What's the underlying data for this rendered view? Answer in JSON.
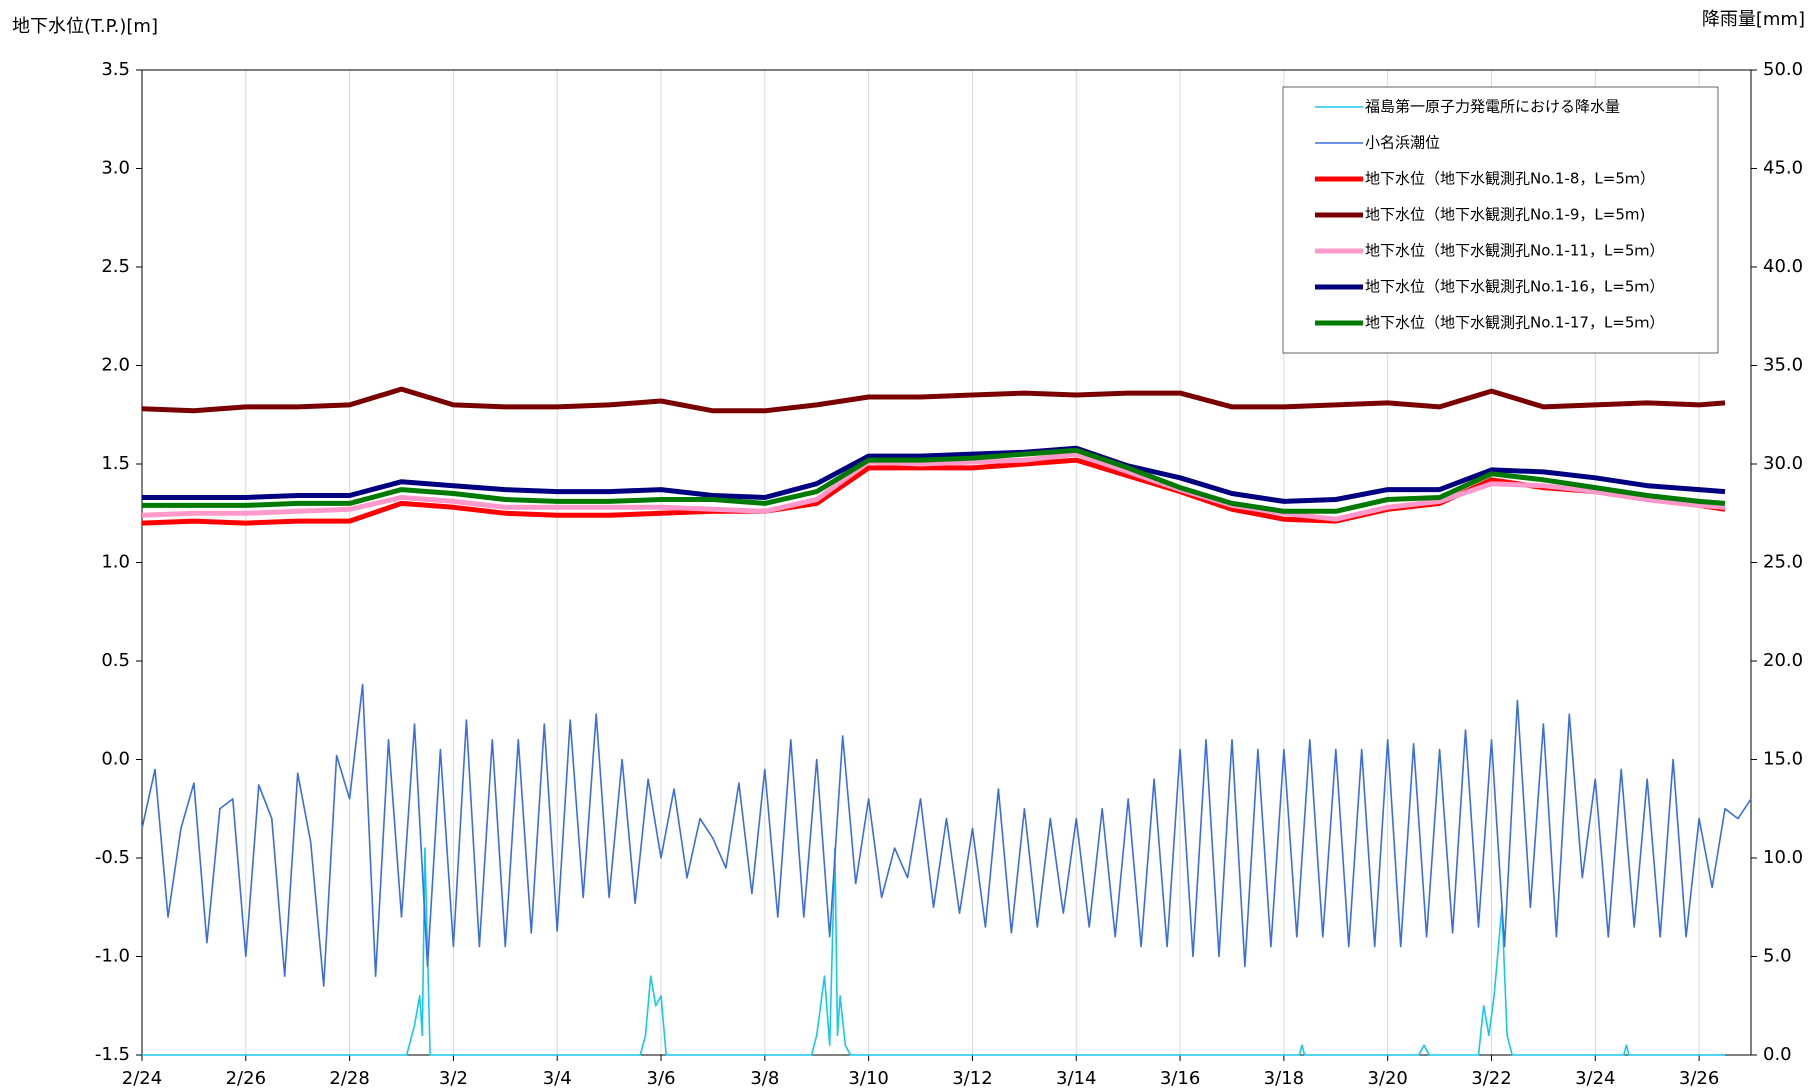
{
  "chart_data": {
    "type": "line",
    "y_label": "地下水位(T.P.)[m]",
    "y2_label": "降雨量[mm]",
    "x": [
      0,
      1,
      2,
      3,
      4,
      5,
      6,
      7,
      8,
      9,
      10,
      11,
      12,
      13,
      14,
      15,
      16,
      17,
      18,
      19,
      20,
      21,
      22,
      23,
      24,
      25,
      26,
      27,
      28,
      29,
      30,
      30.5
    ],
    "xlim": [
      0,
      31
    ],
    "xticks": [
      {
        "value": 0,
        "label": "2/24"
      },
      {
        "value": 2,
        "label": "2/26"
      },
      {
        "value": 4,
        "label": "2/28"
      },
      {
        "value": 6,
        "label": "3/2"
      },
      {
        "value": 8,
        "label": "3/4"
      },
      {
        "value": 10,
        "label": "3/6"
      },
      {
        "value": 12,
        "label": "3/8"
      },
      {
        "value": 14,
        "label": "3/10"
      },
      {
        "value": 16,
        "label": "3/12"
      },
      {
        "value": 18,
        "label": "3/14"
      },
      {
        "value": 20,
        "label": "3/16"
      },
      {
        "value": 22,
        "label": "3/18"
      },
      {
        "value": 24,
        "label": "3/20"
      },
      {
        "value": 26,
        "label": "3/22"
      },
      {
        "value": 28,
        "label": "3/24"
      },
      {
        "value": 30,
        "label": "3/26"
      }
    ],
    "ylim": [
      -1.5,
      3.5
    ],
    "yticks": [
      -1.5,
      {
        "value": -1,
        "label": "-1.0"
      },
      -0.5,
      {
        "value": 0,
        "label": "0.0"
      },
      0.5,
      {
        "value": 1,
        "label": "1.0"
      },
      1.5,
      {
        "value": 2,
        "label": "2.0"
      },
      2.5,
      {
        "value": 3,
        "label": "3.0"
      },
      3.5
    ],
    "y2lim": [
      0,
      50
    ],
    "y2ticks": [
      {
        "value": 0,
        "label": "0.0"
      },
      {
        "value": 5,
        "label": "5.0"
      },
      {
        "value": 10,
        "label": "10.0"
      },
      {
        "value": 15,
        "label": "15.0"
      },
      {
        "value": 20,
        "label": "20.0"
      },
      {
        "value": 25,
        "label": "25.0"
      },
      {
        "value": 30,
        "label": "30.0"
      },
      {
        "value": 35,
        "label": "35.0"
      },
      {
        "value": 40,
        "label": "40.0"
      },
      {
        "value": 45,
        "label": "45.0"
      },
      {
        "value": 50,
        "label": "50.0"
      }
    ],
    "grid": "x",
    "legend": "top-right",
    "series": [
      {
        "name": "福島第一原子力発電所における降水量",
        "color": "#14c8ee",
        "axis": "y2",
        "line_width": 1.6,
        "x": [
          0,
          5.1,
          5.25,
          5.35,
          5.4,
          5.45,
          5.55,
          9.6,
          9.7,
          9.8,
          9.9,
          10.0,
          10.1,
          12.9,
          13.0,
          13.15,
          13.25,
          13.35,
          13.4,
          13.45,
          13.55,
          13.65,
          22.3,
          22.35,
          22.4,
          24.6,
          24.7,
          24.8,
          25.75,
          25.85,
          25.95,
          26.05,
          26.2,
          26.3,
          26.4,
          28.55,
          28.6,
          28.65,
          30.5
        ],
        "values": [
          0,
          0,
          1.5,
          3,
          1,
          10.5,
          0,
          0,
          1,
          4,
          2.5,
          3,
          0,
          0,
          1,
          4,
          0.5,
          10.5,
          1,
          3,
          0.5,
          0,
          0,
          0.5,
          0,
          0,
          0.5,
          0,
          0,
          2.5,
          1,
          3,
          7.5,
          1,
          0,
          0,
          0.5,
          0,
          0
        ]
      },
      {
        "name": "小名浜潮位",
        "color": "#3a6ee0",
        "line_width": 1.6,
        "x": [
          0,
          0.25,
          0.5,
          0.75,
          1,
          1.25,
          1.5,
          1.75,
          2,
          2.25,
          2.5,
          2.75,
          3,
          3.25,
          3.5,
          3.75,
          4,
          4.25,
          4.5,
          4.75,
          5,
          5.25,
          5.5,
          5.75,
          6,
          6.25,
          6.5,
          6.75,
          7,
          7.25,
          7.5,
          7.75,
          8,
          8.25,
          8.5,
          8.75,
          9,
          9.25,
          9.5,
          9.75,
          10,
          10.25,
          10.5,
          10.75,
          11,
          11.25,
          11.5,
          11.75,
          12,
          12.25,
          12.5,
          12.75,
          13,
          13.25,
          13.5,
          13.75,
          14,
          14.25,
          14.5,
          14.75,
          15,
          15.25,
          15.5,
          15.75,
          16,
          16.25,
          16.5,
          16.75,
          17,
          17.25,
          17.5,
          17.75,
          18,
          18.25,
          18.5,
          18.75,
          19,
          19.25,
          19.5,
          19.75,
          20,
          20.25,
          20.5,
          20.75,
          21,
          21.25,
          21.5,
          21.75,
          22,
          22.25,
          22.5,
          22.75,
          23,
          23.25,
          23.5,
          23.75,
          24,
          24.25,
          24.5,
          24.75,
          25,
          25.25,
          25.5,
          25.75,
          26,
          26.25,
          26.5,
          26.75,
          27,
          27.25,
          27.5,
          27.75,
          28,
          28.25,
          28.5,
          28.75,
          29,
          29.25,
          29.5,
          29.75,
          30,
          30.25,
          30.5,
          30.75,
          31
        ],
        "values": [
          -0.35,
          -0.05,
          -0.8,
          -0.35,
          -0.12,
          -0.93,
          -0.25,
          -0.2,
          -1.0,
          -0.13,
          -0.3,
          -1.1,
          -0.07,
          -0.42,
          -1.15,
          0.02,
          -0.2,
          0.38,
          -1.1,
          0.1,
          -0.8,
          0.18,
          -1.05,
          0.05,
          -0.95,
          0.2,
          -0.95,
          0.1,
          -0.95,
          0.1,
          -0.88,
          0.18,
          -0.87,
          0.2,
          -0.7,
          0.23,
          -0.7,
          0.0,
          -0.73,
          -0.1,
          -0.5,
          -0.15,
          -0.6,
          -0.3,
          -0.4,
          -0.55,
          -0.12,
          -0.68,
          -0.05,
          -0.8,
          0.1,
          -0.8,
          0.0,
          -0.9,
          0.12,
          -0.63,
          -0.2,
          -0.7,
          -0.45,
          -0.6,
          -0.2,
          -0.75,
          -0.3,
          -0.78,
          -0.35,
          -0.85,
          -0.15,
          -0.88,
          -0.25,
          -0.85,
          -0.3,
          -0.78,
          -0.3,
          -0.85,
          -0.25,
          -0.9,
          -0.2,
          -0.95,
          -0.1,
          -0.95,
          0.05,
          -1.0,
          0.1,
          -1.0,
          0.1,
          -1.05,
          0.05,
          -0.95,
          0.05,
          -0.9,
          0.1,
          -0.9,
          0.05,
          -0.95,
          0.05,
          -0.95,
          0.1,
          -0.95,
          0.08,
          -0.9,
          0.05,
          -0.88,
          0.15,
          -0.85,
          0.1,
          -0.95,
          0.3,
          -0.75,
          0.18,
          -0.9,
          0.23,
          -0.6,
          -0.1,
          -0.9,
          -0.05,
          -0.85,
          -0.1,
          -0.9,
          0.0,
          -0.9,
          -0.3,
          -0.65,
          -0.25,
          -0.3,
          -0.2
        ]
      },
      {
        "name": "地下水位（地下水観測孔No.1-8，L=5ｍ）",
        "color": "#ff0000",
        "line_width": 5,
        "values": [
          1.2,
          1.21,
          1.2,
          1.21,
          1.21,
          1.3,
          1.28,
          1.25,
          1.24,
          1.24,
          1.25,
          1.26,
          1.26,
          1.3,
          1.48,
          1.48,
          1.48,
          1.5,
          1.52,
          1.44,
          1.36,
          1.27,
          1.22,
          1.21,
          1.27,
          1.3,
          1.42,
          1.38,
          1.36,
          1.32,
          1.29,
          1.27
        ]
      },
      {
        "name": "地下水位（地下水観測孔No.1-9，L=5m)",
        "color": "#7a0000",
        "line_width": 5,
        "values": [
          1.78,
          1.77,
          1.79,
          1.79,
          1.8,
          1.88,
          1.8,
          1.79,
          1.79,
          1.8,
          1.82,
          1.77,
          1.77,
          1.8,
          1.84,
          1.84,
          1.85,
          1.86,
          1.85,
          1.86,
          1.86,
          1.79,
          1.79,
          1.8,
          1.81,
          1.79,
          1.87,
          1.79,
          1.8,
          1.81,
          1.8,
          1.81
        ]
      },
      {
        "name": "地下水位（地下水観測孔No.1-11，L=5ｍ）",
        "color": "#ff99cc",
        "line_width": 5,
        "values": [
          1.24,
          1.25,
          1.25,
          1.26,
          1.27,
          1.33,
          1.31,
          1.28,
          1.28,
          1.28,
          1.28,
          1.27,
          1.26,
          1.32,
          1.51,
          1.5,
          1.51,
          1.52,
          1.55,
          1.46,
          1.37,
          1.29,
          1.25,
          1.22,
          1.28,
          1.31,
          1.4,
          1.39,
          1.36,
          1.32,
          1.29,
          1.28
        ]
      },
      {
        "name": "地下水位（地下水観測孔No.1-16，L=5ｍ）",
        "color": "#000080",
        "line_width": 5,
        "values": [
          1.33,
          1.33,
          1.33,
          1.34,
          1.34,
          1.41,
          1.39,
          1.37,
          1.36,
          1.36,
          1.37,
          1.34,
          1.33,
          1.4,
          1.54,
          1.54,
          1.55,
          1.56,
          1.58,
          1.49,
          1.43,
          1.35,
          1.31,
          1.32,
          1.37,
          1.37,
          1.47,
          1.46,
          1.43,
          1.39,
          1.37,
          1.36
        ]
      },
      {
        "name": "地下水位（地下水観測孔No.1-17，L=5ｍ）",
        "color": "#007a00",
        "line_width": 5,
        "values": [
          1.29,
          1.29,
          1.29,
          1.3,
          1.3,
          1.37,
          1.35,
          1.32,
          1.31,
          1.31,
          1.32,
          1.32,
          1.3,
          1.36,
          1.52,
          1.52,
          1.53,
          1.55,
          1.57,
          1.48,
          1.38,
          1.3,
          1.26,
          1.26,
          1.32,
          1.33,
          1.45,
          1.42,
          1.38,
          1.34,
          1.31,
          1.3
        ]
      }
    ]
  }
}
